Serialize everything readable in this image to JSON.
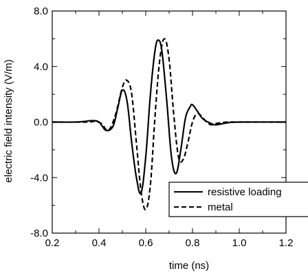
{
  "chart_data": {
    "type": "line",
    "xlabel": "time (ns)",
    "ylabel": "electric field intensity (V/m)",
    "xlim": [
      0.2,
      1.2
    ],
    "ylim": [
      -8.0,
      8.0
    ],
    "x_ticks": [
      0.2,
      0.4,
      0.6,
      0.8,
      1.0,
      1.2
    ],
    "x_tick_labels": [
      "0.2",
      "0.4",
      "0.6",
      "0.8",
      "1.0",
      "1.2"
    ],
    "y_ticks": [
      -8.0,
      -4.0,
      0.0,
      4.0,
      8.0
    ],
    "y_tick_labels": [
      "-8.0",
      "-4.0",
      "0.0",
      "4.0",
      "8.0"
    ],
    "grid": false,
    "legend_position": "lower-right",
    "series": [
      {
        "name": "resistive loading",
        "style": "solid",
        "color": "#000000",
        "x": [
          0.2,
          0.3,
          0.34,
          0.37,
          0.4,
          0.43,
          0.46,
          0.48,
          0.5,
          0.52,
          0.54,
          0.56,
          0.58,
          0.6,
          0.62,
          0.64,
          0.655,
          0.67,
          0.69,
          0.71,
          0.73,
          0.75,
          0.77,
          0.79,
          0.8,
          0.82,
          0.84,
          0.86,
          0.88,
          0.9,
          0.95,
          1.0,
          1.2
        ],
        "y": [
          0.0,
          0.0,
          0.05,
          0.1,
          0.0,
          -0.6,
          -0.3,
          1.0,
          2.3,
          1.5,
          -1.5,
          -4.0,
          -5.1,
          -2.5,
          2.0,
          5.2,
          5.9,
          5.0,
          1.5,
          -2.5,
          -3.7,
          -2.0,
          0.3,
          1.1,
          1.25,
          0.8,
          0.3,
          0.05,
          -0.1,
          -0.2,
          -0.05,
          0.0,
          0.0
        ]
      },
      {
        "name": "metal",
        "style": "dashed",
        "color": "#000000",
        "x": [
          0.2,
          0.35,
          0.38,
          0.41,
          0.44,
          0.47,
          0.5,
          0.52,
          0.54,
          0.56,
          0.58,
          0.6,
          0.62,
          0.64,
          0.66,
          0.68,
          0.7,
          0.72,
          0.74,
          0.76,
          0.78,
          0.8,
          0.82,
          0.84,
          0.86,
          0.88,
          0.9,
          0.95,
          1.0,
          1.2
        ],
        "y": [
          0.0,
          0.0,
          0.05,
          -0.1,
          -0.6,
          0.5,
          2.5,
          3.0,
          2.0,
          -1.5,
          -5.0,
          -6.3,
          -4.5,
          0.5,
          4.5,
          6.0,
          4.5,
          0.5,
          -2.5,
          -2.7,
          -1.5,
          0.0,
          0.6,
          0.4,
          0.0,
          -0.2,
          -0.1,
          0.0,
          0.0,
          0.0
        ]
      }
    ]
  }
}
